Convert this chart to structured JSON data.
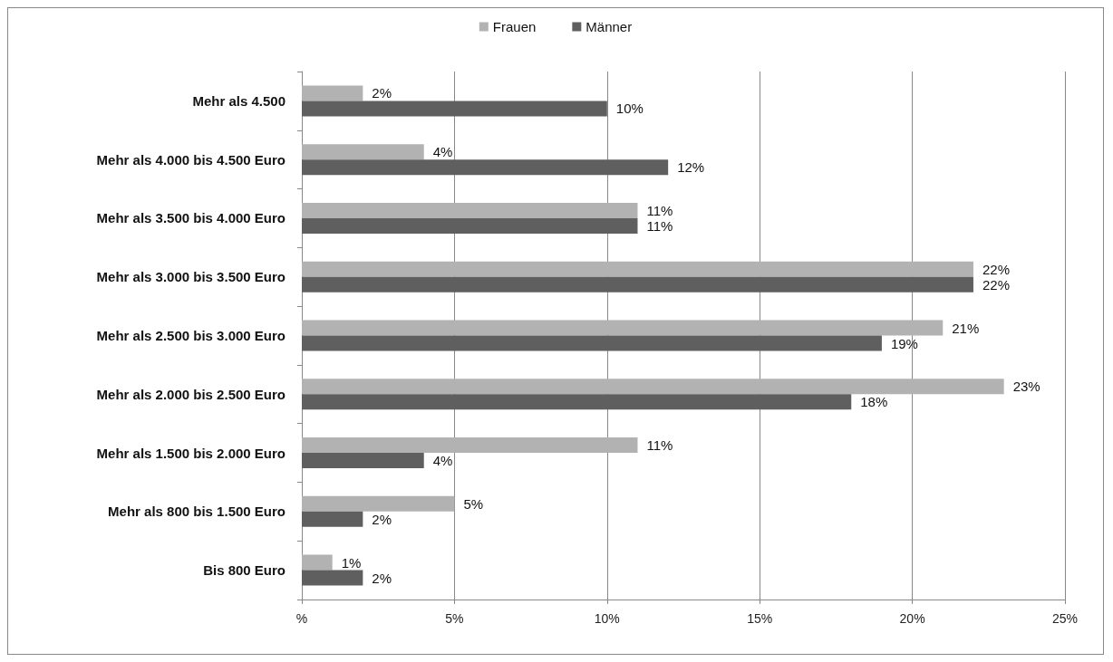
{
  "chart_data": {
    "type": "bar",
    "orientation": "horizontal",
    "categories": [
      "Mehr als 4.500",
      "Mehr als 4.000 bis 4.500 Euro",
      "Mehr als 3.500 bis 4.000 Euro",
      "Mehr als 3.000 bis 3.500 Euro",
      "Mehr als 2.500 bis 3.000 Euro",
      "Mehr als 2.000 bis 2.500 Euro",
      "Mehr als 1.500 bis 2.000 Euro",
      "Mehr als 800 bis 1.500 Euro",
      "Bis 800 Euro"
    ],
    "series": [
      {
        "name": "Frauen",
        "color": "#b2b2b2",
        "values": [
          2,
          4,
          11,
          22,
          21,
          23,
          11,
          5,
          1
        ],
        "value_labels": [
          "2%",
          "4%",
          "11%",
          "22%",
          "21%",
          "23%",
          "11%",
          "5%",
          "1%"
        ]
      },
      {
        "name": "Männer",
        "color": "#5f5f5f",
        "values": [
          10,
          12,
          11,
          22,
          19,
          18,
          4,
          2,
          2
        ],
        "value_labels": [
          "10%",
          "12%",
          "11%",
          "22%",
          "19%",
          "18%",
          "4%",
          "2%",
          "2%"
        ]
      }
    ],
    "xlim": [
      0,
      25
    ],
    "xticks": [
      {
        "value": 0,
        "label": "%"
      },
      {
        "value": 5,
        "label": "5%"
      },
      {
        "value": 10,
        "label": "10%"
      },
      {
        "value": 15,
        "label": "15%"
      },
      {
        "value": 20,
        "label": "20%"
      },
      {
        "value": 25,
        "label": "25%"
      }
    ],
    "grid": "x",
    "legend": "top"
  }
}
